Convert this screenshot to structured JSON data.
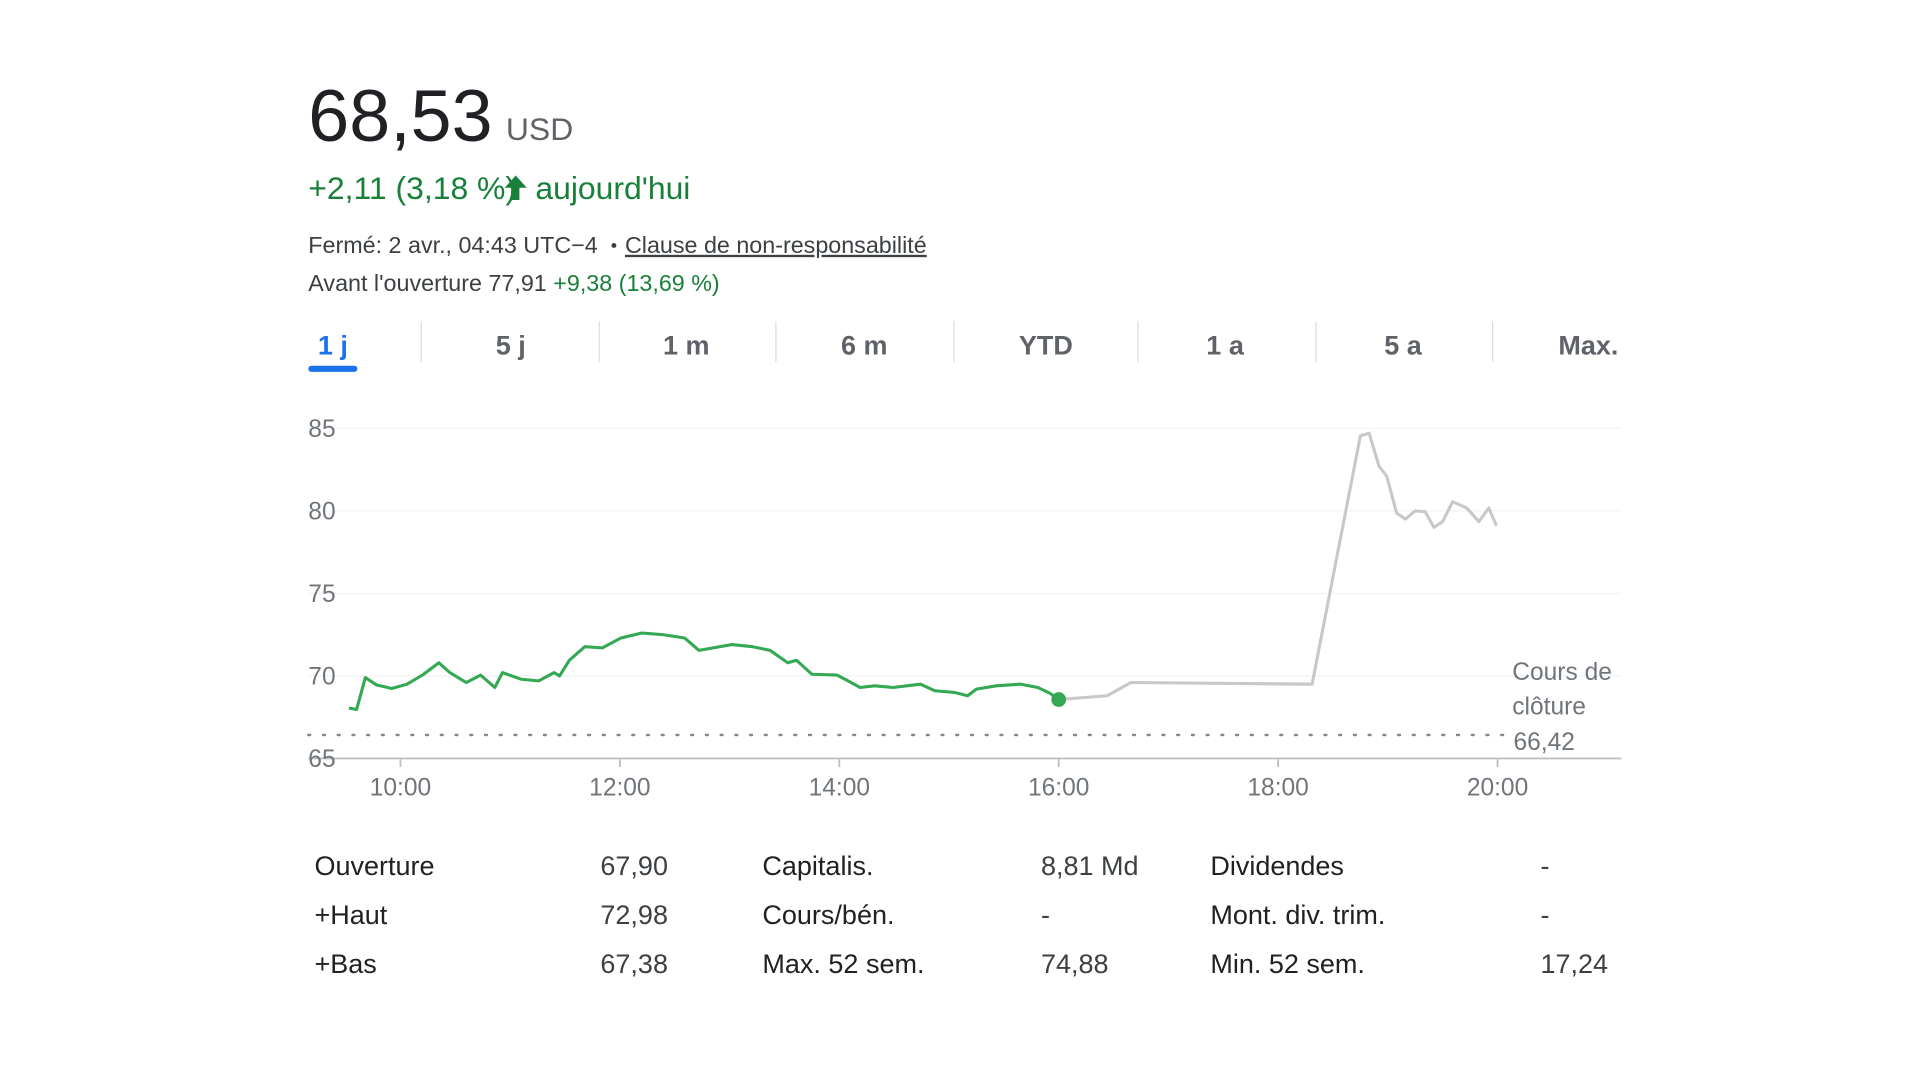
{
  "header": {
    "price": "68,53",
    "currency": "USD",
    "change": "+2,11 (3,18 %)",
    "change_period": "aujourd'hui",
    "status": "Fermé: 2 avr., 04:43 UTC−4",
    "disclaimer": "Clause de non-responsabilité",
    "premarket_label": "Avant l'ouverture",
    "premarket_price": "77,91",
    "premarket_change": "+9,38 (13,69 %)"
  },
  "tabs": [
    "1 j",
    "5 j",
    "1 m",
    "6 m",
    "YTD",
    "1 a",
    "5 a",
    "Max."
  ],
  "active_tab": "1 j",
  "chart_data": {
    "type": "line",
    "xlim": [
      9.16,
      21.13
    ],
    "ylim": [
      65,
      85
    ],
    "yticks": [
      65,
      70,
      75,
      80,
      85
    ],
    "xticks": [
      {
        "value": 10,
        "label": "10:00"
      },
      {
        "value": 12,
        "label": "12:00"
      },
      {
        "value": 14,
        "label": "14:00"
      },
      {
        "value": 16,
        "label": "16:00"
      },
      {
        "value": 18,
        "label": "18:00"
      },
      {
        "value": 20,
        "label": "20:00"
      }
    ],
    "grid": true,
    "previous_close": {
      "label": "Cours de clôture",
      "value": 66.42,
      "value_label": "66,42"
    },
    "series": [
      {
        "color": "#34a853",
        "x": [
          9.53,
          9.6,
          9.68,
          9.78,
          9.92,
          10.06,
          10.2,
          10.35,
          10.45,
          10.6,
          10.73,
          10.86,
          10.93,
          11.1,
          11.26,
          11.4,
          11.45,
          11.54,
          11.68,
          11.84,
          12.01,
          12.2,
          12.39,
          12.59,
          12.72,
          12.85,
          13.02,
          13.21,
          13.37,
          13.53,
          13.61,
          13.75,
          13.98,
          14.08,
          14.19,
          14.32,
          14.49,
          14.74,
          14.87,
          15.05,
          15.17,
          15.25,
          15.43,
          15.65,
          15.81,
          15.92,
          16.0
        ],
        "values": [
          68.05,
          67.97,
          69.9,
          69.46,
          69.24,
          69.5,
          70.05,
          70.8,
          70.2,
          69.6,
          70.05,
          69.3,
          70.2,
          69.8,
          69.7,
          70.2,
          70.0,
          70.95,
          71.77,
          71.7,
          72.3,
          72.6,
          72.5,
          72.3,
          71.55,
          71.7,
          71.9,
          71.77,
          71.55,
          70.8,
          70.95,
          70.1,
          70.05,
          69.7,
          69.3,
          69.4,
          69.3,
          69.5,
          69.1,
          69.0,
          68.8,
          69.2,
          69.4,
          69.5,
          69.3,
          68.95,
          68.57
        ]
      },
      {
        "color": "#c8c8c8",
        "x": [
          16.0,
          16.44,
          16.66,
          18.31,
          18.75,
          18.83,
          18.92,
          18.99,
          19.08,
          19.16,
          19.25,
          19.34,
          19.42,
          19.5,
          19.59,
          19.72,
          19.83,
          19.92,
          19.99
        ],
        "values": [
          68.57,
          68.8,
          69.6,
          69.5,
          84.55,
          84.7,
          82.7,
          82.1,
          79.87,
          79.5,
          80.0,
          79.95,
          79.0,
          79.35,
          80.55,
          80.17,
          79.35,
          80.17,
          79.1
        ]
      }
    ]
  },
  "stats": [
    {
      "label": "Ouverture",
      "value": "67,90"
    },
    {
      "label": "+Haut",
      "value": "72,98"
    },
    {
      "label": "+Bas",
      "value": "67,38"
    },
    {
      "label": "Capitalis.",
      "value": "8,81 Md"
    },
    {
      "label": "Cours/bén.",
      "value": "-"
    },
    {
      "label": "Max. 52 sem.",
      "value": "74,88"
    },
    {
      "label": "Dividendes",
      "value": "-"
    },
    {
      "label": "Mont. div. trim.",
      "value": "-"
    },
    {
      "label": "Min. 52 sem.",
      "value": "17,24"
    }
  ]
}
